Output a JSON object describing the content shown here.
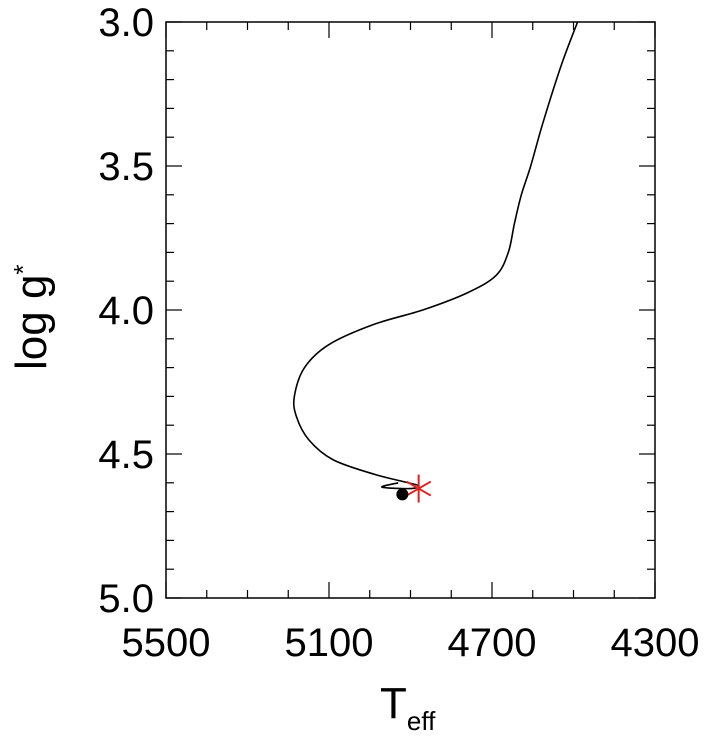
{
  "chart_data": {
    "type": "line",
    "xlabel": {
      "main": "T",
      "sub": "eff"
    },
    "ylabel": {
      "main": "log g",
      "sub": "*"
    },
    "xlim": [
      5500,
      4300
    ],
    "ylim": [
      3.0,
      5.0
    ],
    "x_reversed": true,
    "y_reversed": true,
    "x_ticks": [
      "5500",
      "5100",
      "4700",
      "4300"
    ],
    "x_tick_values": [
      5500,
      5100,
      4700,
      4300
    ],
    "y_ticks": [
      "3.0",
      "3.5",
      "4.0",
      "4.5",
      "5.0"
    ],
    "y_tick_values": [
      3.0,
      3.5,
      4.0,
      4.5,
      5.0
    ],
    "x_minor_step": 100,
    "y_minor_step": 0.1,
    "grid": false,
    "colors": {
      "line": "#000000",
      "star_marker": "#e0201b",
      "dot_marker": "#000000"
    },
    "series": [
      {
        "marker": "none",
        "x": [
          4490,
          4530,
          4575,
          4605,
          4628,
          4645,
          4660,
          4690,
          4760,
          4870,
          4990,
          5100,
          5160,
          5185,
          5180,
          5150,
          5090,
          4990,
          4920,
          4880,
          4900,
          4970,
          4930
        ],
        "y": [
          3.0,
          3.15,
          3.35,
          3.5,
          3.6,
          3.7,
          3.8,
          3.88,
          3.94,
          4.0,
          4.05,
          4.12,
          4.2,
          4.3,
          4.37,
          4.45,
          4.52,
          4.57,
          4.595,
          4.61,
          4.62,
          4.615,
          4.6
        ]
      },
      {
        "marker": "asterisk",
        "x": [
          4880
        ],
        "y": [
          4.62
        ]
      },
      {
        "marker": "filled-circle",
        "x": [
          4920
        ],
        "y": [
          4.64
        ]
      }
    ]
  }
}
